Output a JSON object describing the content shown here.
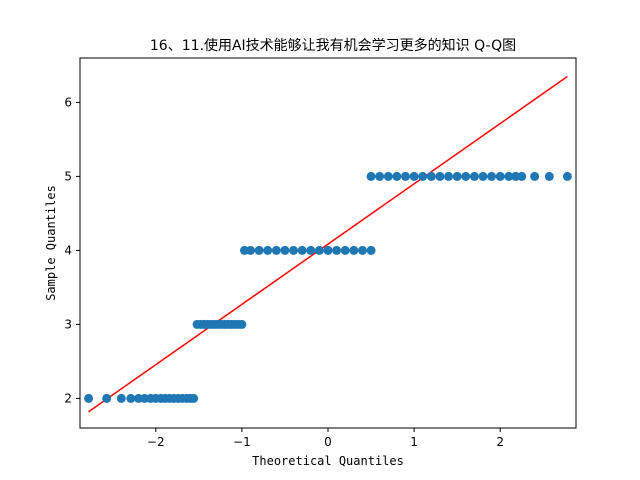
{
  "chart_data": {
    "type": "scatter",
    "title": "16、11.使用AI技术能够让我有机会学习更多的知识 Q-Q图",
    "xlabel": "Theoretical Quantiles",
    "ylabel": "Sample Quantiles",
    "xlim": [
      -2.88,
      2.88
    ],
    "ylim": [
      1.6,
      6.6
    ],
    "xticks": [
      -2,
      -1,
      0,
      1,
      2
    ],
    "yticks": [
      2,
      3,
      4,
      5,
      6
    ],
    "grid": false,
    "colors": {
      "points": "#1f77b4",
      "line": "#ff0000"
    },
    "series": [
      {
        "type": "scatter",
        "points": [
          [
            -2.78,
            2
          ],
          [
            -2.57,
            2
          ],
          [
            -2.4,
            2
          ],
          [
            -2.29,
            2
          ],
          [
            -2.2,
            2
          ],
          [
            -2.13,
            2
          ],
          [
            -2.06,
            2
          ],
          [
            -2.0,
            2
          ],
          [
            -1.94,
            2
          ],
          [
            -1.89,
            2
          ],
          [
            -1.84,
            2
          ],
          [
            -1.79,
            2
          ],
          [
            -1.74,
            2
          ],
          [
            -1.69,
            2
          ],
          [
            -1.64,
            2
          ],
          [
            -1.6,
            2
          ],
          [
            -1.56,
            2
          ],
          [
            -1.52,
            3
          ],
          [
            -1.48,
            3
          ],
          [
            -1.44,
            3
          ],
          [
            -1.4,
            3
          ],
          [
            -1.36,
            3
          ],
          [
            -1.32,
            3
          ],
          [
            -1.28,
            3
          ],
          [
            -1.24,
            3
          ],
          [
            -1.2,
            3
          ],
          [
            -1.16,
            3
          ],
          [
            -1.12,
            3
          ],
          [
            -1.08,
            3
          ],
          [
            -1.04,
            3
          ],
          [
            -1.0,
            3
          ],
          [
            -0.97,
            4
          ],
          [
            -0.9,
            4
          ],
          [
            -0.8,
            4
          ],
          [
            -0.7,
            4
          ],
          [
            -0.6,
            4
          ],
          [
            -0.5,
            4
          ],
          [
            -0.4,
            4
          ],
          [
            -0.3,
            4
          ],
          [
            -0.2,
            4
          ],
          [
            -0.1,
            4
          ],
          [
            0.0,
            4
          ],
          [
            0.1,
            4
          ],
          [
            0.2,
            4
          ],
          [
            0.3,
            4
          ],
          [
            0.4,
            4
          ],
          [
            0.5,
            4
          ],
          [
            0.5,
            5
          ],
          [
            0.6,
            5
          ],
          [
            0.7,
            5
          ],
          [
            0.8,
            5
          ],
          [
            0.9,
            5
          ],
          [
            1.0,
            5
          ],
          [
            1.1,
            5
          ],
          [
            1.2,
            5
          ],
          [
            1.3,
            5
          ],
          [
            1.4,
            5
          ],
          [
            1.5,
            5
          ],
          [
            1.6,
            5
          ],
          [
            1.7,
            5
          ],
          [
            1.8,
            5
          ],
          [
            1.9,
            5
          ],
          [
            2.0,
            5
          ],
          [
            2.1,
            5
          ],
          [
            2.18,
            5
          ],
          [
            2.25,
            5
          ],
          [
            2.4,
            5
          ],
          [
            2.57,
            5
          ],
          [
            2.78,
            5
          ]
        ]
      },
      {
        "type": "line",
        "points": [
          [
            -2.78,
            1.82
          ],
          [
            2.78,
            6.35
          ]
        ]
      }
    ]
  }
}
